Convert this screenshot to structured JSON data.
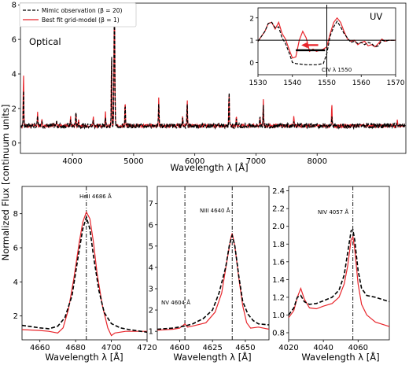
{
  "ylabel": "Normalized Flux [continuum units]",
  "colors": {
    "obs": "#000000",
    "model": "#e8252b"
  },
  "chart_data": [
    {
      "type": "line",
      "id": "top",
      "panel_label": "Optical",
      "xlabel": "Wavelength λ [Å]",
      "xlim": [
        3150,
        9450
      ],
      "ylim": [
        -0.6,
        8.1
      ],
      "xticks": [
        4000,
        5000,
        6000,
        7000,
        8000
      ],
      "yticks": [
        0,
        2,
        4,
        6,
        8
      ],
      "legend": {
        "placement": "top-left",
        "entries": [
          {
            "label": "Mimic observation (β = 20)",
            "style": "dashed",
            "color": "#000000"
          },
          {
            "label": "Best fit grid-model (β = 1)",
            "style": "solid",
            "color": "#e8252b"
          }
        ]
      },
      "lines": [
        {
          "x": 3200,
          "model": 4.2,
          "obs": 3.3
        },
        {
          "x": 3430,
          "model": 1.9,
          "obs": 1.6
        },
        {
          "x": 3500,
          "model": 1.5,
          "obs": 1.4
        },
        {
          "x": 3740,
          "model": 1.3,
          "obs": 1.2
        },
        {
          "x": 3970,
          "model": 1.5,
          "obs": 1.3
        },
        {
          "x": 4057,
          "model": 1.8,
          "obs": 2.0
        },
        {
          "x": 4100,
          "model": 1.4,
          "obs": 1.3
        },
        {
          "x": 4340,
          "model": 1.6,
          "obs": 1.4
        },
        {
          "x": 4540,
          "model": 1.8,
          "obs": 1.6
        },
        {
          "x": 4640,
          "model": 5.3,
          "obs": 5.5
        },
        {
          "x": 4686,
          "model": 8.0,
          "obs": 7.6
        },
        {
          "x": 4861,
          "model": 2.5,
          "obs": 2.2
        },
        {
          "x": 5411,
          "model": 2.6,
          "obs": 2.4
        },
        {
          "x": 5801,
          "model": 1.5,
          "obs": 1.4
        },
        {
          "x": 5876,
          "model": 2.7,
          "obs": 2.5
        },
        {
          "x": 6560,
          "model": 3.1,
          "obs": 3.2
        },
        {
          "x": 6680,
          "model": 1.6,
          "obs": 1.5
        },
        {
          "x": 7065,
          "model": 1.6,
          "obs": 1.5
        },
        {
          "x": 7120,
          "model": 2.6,
          "obs": 2.3
        },
        {
          "x": 7620,
          "model": 1.6,
          "obs": 1.4
        },
        {
          "x": 8240,
          "model": 2.3,
          "obs": 1.5
        },
        {
          "x": 9310,
          "model": 1.3,
          "obs": 1.2
        }
      ]
    },
    {
      "type": "line",
      "id": "uv",
      "panel_label": "UV",
      "xlim": [
        1530,
        1570
      ],
      "ylim": [
        -0.55,
        2.45
      ],
      "xticks": [
        1530,
        1540,
        1550,
        1560,
        1570
      ],
      "yticks": [
        0,
        1,
        2
      ],
      "annotation": "CIV λ 1550",
      "annotation_x": 1550,
      "obs": [
        [
          1530,
          0.95
        ],
        [
          1532,
          1.4
        ],
        [
          1533,
          1.75
        ],
        [
          1534,
          1.8
        ],
        [
          1535,
          1.55
        ],
        [
          1536,
          1.6
        ],
        [
          1537,
          1.1
        ],
        [
          1538,
          0.85
        ],
        [
          1539,
          0.45
        ],
        [
          1540,
          0.0
        ],
        [
          1541,
          -0.05
        ],
        [
          1544,
          -0.1
        ],
        [
          1547,
          -0.1
        ],
        [
          1549,
          -0.05
        ],
        [
          1550,
          0.4
        ],
        [
          1551,
          1.2
        ],
        [
          1552,
          1.6
        ],
        [
          1553,
          1.85
        ],
        [
          1554,
          1.6
        ],
        [
          1555,
          1.3
        ],
        [
          1556,
          1.1
        ],
        [
          1557,
          0.9
        ],
        [
          1558,
          0.95
        ],
        [
          1559,
          0.85
        ],
        [
          1560,
          0.9
        ],
        [
          1561,
          0.8
        ],
        [
          1562,
          0.9
        ],
        [
          1563,
          0.85
        ],
        [
          1564,
          0.7
        ],
        [
          1565,
          0.75
        ],
        [
          1566,
          1.0
        ],
        [
          1567,
          0.95
        ],
        [
          1568,
          1.0
        ],
        [
          1570,
          1.0
        ]
      ],
      "model": [
        [
          1530,
          0.95
        ],
        [
          1532,
          1.4
        ],
        [
          1533,
          1.75
        ],
        [
          1534,
          1.8
        ],
        [
          1535,
          1.5
        ],
        [
          1536,
          1.8
        ],
        [
          1537,
          1.3
        ],
        [
          1538,
          1.05
        ],
        [
          1539,
          0.6
        ],
        [
          1540,
          0.2
        ],
        [
          1541,
          0.25
        ],
        [
          1542,
          1.0
        ],
        [
          1543,
          1.4
        ],
        [
          1544,
          1.1
        ],
        [
          1545,
          0.5
        ],
        [
          1546,
          0.6
        ],
        [
          1547,
          0.5
        ],
        [
          1548,
          0.55
        ],
        [
          1549,
          0.6
        ],
        [
          1550,
          0.7
        ],
        [
          1551,
          1.3
        ],
        [
          1552,
          1.8
        ],
        [
          1553,
          2.0
        ],
        [
          1554,
          1.8
        ],
        [
          1555,
          1.4
        ],
        [
          1556,
          1.05
        ],
        [
          1557,
          0.95
        ],
        [
          1558,
          1.0
        ],
        [
          1559,
          0.8
        ],
        [
          1560,
          0.9
        ],
        [
          1561,
          0.95
        ],
        [
          1562,
          0.75
        ],
        [
          1563,
          0.8
        ],
        [
          1564,
          0.7
        ],
        [
          1565,
          0.85
        ],
        [
          1566,
          1.05
        ],
        [
          1567,
          0.95
        ],
        [
          1568,
          1.0
        ],
        [
          1570,
          1.0
        ]
      ]
    },
    {
      "type": "line",
      "id": "heii",
      "xlabel": "Wavelength λ [Å]",
      "xlim": [
        4650,
        4720
      ],
      "ylim": [
        0.6,
        9.6
      ],
      "xticks": [
        4660,
        4680,
        4700,
        4720
      ],
      "yticks": [
        2,
        4,
        6,
        8
      ],
      "annotation": "HeII 4686 Å",
      "annotation_x": 4686,
      "obs": [
        [
          4650,
          1.45
        ],
        [
          4660,
          1.3
        ],
        [
          4665,
          1.25
        ],
        [
          4670,
          1.4
        ],
        [
          4674,
          1.9
        ],
        [
          4678,
          3.2
        ],
        [
          4681,
          5.2
        ],
        [
          4684,
          7.1
        ],
        [
          4686,
          7.8
        ],
        [
          4688,
          7.1
        ],
        [
          4690,
          5.5
        ],
        [
          4693,
          3.5
        ],
        [
          4696,
          2.2
        ],
        [
          4700,
          1.55
        ],
        [
          4705,
          1.3
        ],
        [
          4710,
          1.2
        ],
        [
          4720,
          1.05
        ]
      ],
      "model": [
        [
          4650,
          1.2
        ],
        [
          4660,
          1.15
        ],
        [
          4665,
          1.1
        ],
        [
          4670,
          1.0
        ],
        [
          4673,
          1.3
        ],
        [
          4676,
          2.4
        ],
        [
          4679,
          4.2
        ],
        [
          4682,
          6.3
        ],
        [
          4684,
          7.5
        ],
        [
          4686,
          8.1
        ],
        [
          4688,
          7.7
        ],
        [
          4690,
          6.3
        ],
        [
          4692,
          4.5
        ],
        [
          4695,
          2.6
        ],
        [
          4698,
          1.3
        ],
        [
          4700,
          0.85
        ],
        [
          4702,
          1.0
        ],
        [
          4708,
          1.1
        ],
        [
          4720,
          1.1
        ]
      ]
    },
    {
      "type": "line",
      "id": "niii",
      "xlabel": "Wavelength λ [Å]",
      "xlim": [
        4583,
        4668
      ],
      "ylim": [
        0.6,
        7.8
      ],
      "xticks": [
        4600,
        4625,
        4650
      ],
      "yticks": [
        1,
        2,
        3,
        4,
        5,
        6,
        7
      ],
      "annotations": [
        {
          "text": "NIII 4640 Å",
          "x": 4640
        },
        {
          "text": "NV 4604 Å",
          "x": 4604
        }
      ],
      "obs": [
        [
          4583,
          1.1
        ],
        [
          4595,
          1.15
        ],
        [
          4604,
          1.25
        ],
        [
          4610,
          1.35
        ],
        [
          4618,
          1.6
        ],
        [
          4625,
          2.0
        ],
        [
          4630,
          2.8
        ],
        [
          4635,
          4.0
        ],
        [
          4638,
          5.1
        ],
        [
          4640,
          5.5
        ],
        [
          4642,
          5.0
        ],
        [
          4645,
          3.6
        ],
        [
          4648,
          2.4
        ],
        [
          4652,
          1.8
        ],
        [
          4656,
          1.5
        ],
        [
          4660,
          1.35
        ],
        [
          4668,
          1.3
        ]
      ],
      "model": [
        [
          4583,
          1.05
        ],
        [
          4595,
          1.1
        ],
        [
          4600,
          1.15
        ],
        [
          4604,
          1.35
        ],
        [
          4606,
          1.2
        ],
        [
          4610,
          1.25
        ],
        [
          4620,
          1.4
        ],
        [
          4627,
          1.9
        ],
        [
          4632,
          2.8
        ],
        [
          4636,
          4.3
        ],
        [
          4639,
          5.4
        ],
        [
          4640,
          5.6
        ],
        [
          4642,
          5.0
        ],
        [
          4645,
          3.5
        ],
        [
          4648,
          2.2
        ],
        [
          4651,
          1.4
        ],
        [
          4654,
          1.15
        ],
        [
          4660,
          1.2
        ],
        [
          4668,
          1.1
        ]
      ]
    },
    {
      "type": "line",
      "id": "niv",
      "xlabel": "Wavelength λ [Å]",
      "xlim": [
        4020,
        4078
      ],
      "ylim": [
        0.72,
        2.45
      ],
      "xticks": [
        4020,
        4040,
        4060
      ],
      "yticks": [
        0.8,
        1.0,
        1.2,
        1.4,
        1.6,
        1.8,
        2.0,
        2.2,
        2.4
      ],
      "annotation": "NIV 4057 Å",
      "annotation_x": 4057,
      "obs": [
        [
          4020,
          1.0
        ],
        [
          4023,
          1.08
        ],
        [
          4025,
          1.2
        ],
        [
          4027,
          1.22
        ],
        [
          4029,
          1.15
        ],
        [
          4032,
          1.12
        ],
        [
          4036,
          1.13
        ],
        [
          4040,
          1.16
        ],
        [
          4045,
          1.2
        ],
        [
          4049,
          1.28
        ],
        [
          4052,
          1.45
        ],
        [
          4054,
          1.7
        ],
        [
          4056,
          1.95
        ],
        [
          4057,
          1.96
        ],
        [
          4058,
          1.85
        ],
        [
          4060,
          1.5
        ],
        [
          4062,
          1.3
        ],
        [
          4065,
          1.22
        ],
        [
          4070,
          1.2
        ],
        [
          4078,
          1.15
        ]
      ],
      "model": [
        [
          4020,
          0.97
        ],
        [
          4023,
          1.05
        ],
        [
          4025,
          1.2
        ],
        [
          4027,
          1.3
        ],
        [
          4029,
          1.18
        ],
        [
          4032,
          1.08
        ],
        [
          4036,
          1.07
        ],
        [
          4040,
          1.1
        ],
        [
          4045,
          1.13
        ],
        [
          4049,
          1.2
        ],
        [
          4052,
          1.35
        ],
        [
          4054,
          1.55
        ],
        [
          4056,
          1.85
        ],
        [
          4057,
          1.88
        ],
        [
          4058,
          1.75
        ],
        [
          4060,
          1.35
        ],
        [
          4062,
          1.12
        ],
        [
          4065,
          1.0
        ],
        [
          4070,
          0.92
        ],
        [
          4078,
          0.87
        ]
      ]
    }
  ]
}
